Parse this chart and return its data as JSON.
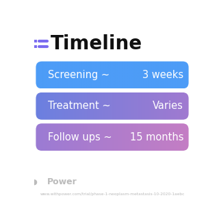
{
  "title": "Timeline",
  "title_fontsize": 20,
  "title_color": "#111111",
  "icon_color": "#7B6CF0",
  "rows": [
    {
      "label": "Screening ~",
      "value": "3 weeks",
      "color_left": "#4D9CF7",
      "color_right": "#4D9CF7"
    },
    {
      "label": "Treatment ~",
      "value": "Varies",
      "color_left": "#6B80E0",
      "color_right": "#A07AD0"
    },
    {
      "label": "Follow ups ~",
      "value": "15 months",
      "color_left": "#9B7BD4",
      "color_right": "#C47EC4"
    }
  ],
  "watermark": "Power",
  "url": "www.withpower.com/trial/phase-1-neoplasm-metastasis-10-2020-1aebc",
  "bg_color": "#FFFFFF",
  "text_color": "#FFFFFF",
  "label_fontsize": 10.5,
  "value_fontsize": 10.5,
  "watermark_color": "#BBBBBB",
  "url_color": "#BBBBBB"
}
